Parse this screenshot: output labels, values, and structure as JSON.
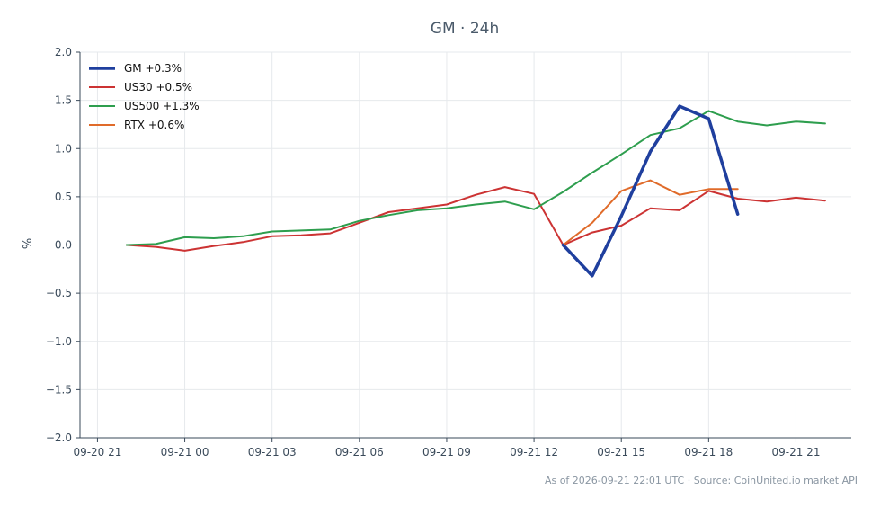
{
  "chart_data": {
    "type": "line",
    "title": "GM · 24h",
    "xlabel": "",
    "ylabel": "%",
    "ylim": [
      -2.0,
      2.0
    ],
    "xlim": [
      -0.6,
      25.9
    ],
    "x_ticks": [
      {
        "x": 0,
        "label": "09-20 21"
      },
      {
        "x": 3,
        "label": "09-21 00"
      },
      {
        "x": 6,
        "label": "09-21 03"
      },
      {
        "x": 9,
        "label": "09-21 06"
      },
      {
        "x": 12,
        "label": "09-21 09"
      },
      {
        "x": 15,
        "label": "09-21 12"
      },
      {
        "x": 18,
        "label": "09-21 15"
      },
      {
        "x": 21,
        "label": "09-21 18"
      },
      {
        "x": 24,
        "label": "09-21 21"
      }
    ],
    "y_ticks": [
      {
        "y": 2.0,
        "label": "2.0"
      },
      {
        "y": 1.5,
        "label": "1.5"
      },
      {
        "y": 1.0,
        "label": "1.0"
      },
      {
        "y": 0.5,
        "label": "0.5"
      },
      {
        "y": 0.0,
        "label": "0.0"
      },
      {
        "y": -0.5,
        "label": "−0.5"
      },
      {
        "y": -1.0,
        "label": "−1.0"
      },
      {
        "y": -1.5,
        "label": "−1.5"
      },
      {
        "y": -2.0,
        "label": "−2.0"
      }
    ],
    "grid": true,
    "zero_line": true,
    "legend_position": "top-left",
    "series": [
      {
        "name": "GM +0.3%",
        "color": "#1f3f9e",
        "width": 3.5,
        "x": [
          16,
          17,
          18,
          19,
          20,
          21,
          22
        ],
        "y": [
          0.0,
          -0.32,
          0.3,
          0.97,
          1.44,
          1.31,
          0.32
        ]
      },
      {
        "name": "US30 +0.5%",
        "color": "#cc3333",
        "width": 2,
        "x": [
          1,
          2,
          3,
          4,
          5,
          6,
          7,
          8,
          9,
          10,
          11,
          12,
          13,
          14,
          15,
          16,
          17,
          18,
          19,
          20,
          21,
          22,
          23,
          24,
          25
        ],
        "y": [
          0.0,
          -0.02,
          -0.06,
          -0.01,
          0.03,
          0.09,
          0.1,
          0.12,
          0.23,
          0.34,
          0.38,
          0.42,
          0.52,
          0.6,
          0.53,
          0.0,
          0.13,
          0.2,
          0.38,
          0.36,
          0.56,
          0.48,
          0.45,
          0.49,
          0.46
        ]
      },
      {
        "name": "US500 +1.3%",
        "color": "#2e9e4e",
        "width": 2,
        "x": [
          1,
          2,
          3,
          4,
          5,
          6,
          7,
          8,
          9,
          10,
          11,
          12,
          13,
          14,
          15,
          16,
          17,
          18,
          19,
          20,
          21,
          22,
          23,
          24,
          25
        ],
        "y": [
          0.0,
          0.01,
          0.08,
          0.07,
          0.09,
          0.14,
          0.15,
          0.16,
          0.25,
          0.31,
          0.36,
          0.38,
          0.42,
          0.45,
          0.37,
          0.55,
          0.75,
          0.94,
          1.14,
          1.21,
          1.39,
          1.28,
          1.24,
          1.28,
          1.26
        ]
      },
      {
        "name": "RTX +0.6%",
        "color": "#e06b2a",
        "width": 2,
        "x": [
          16,
          17,
          18,
          19,
          20,
          21,
          22
        ],
        "y": [
          0.0,
          0.23,
          0.56,
          0.67,
          0.52,
          0.58,
          0.58
        ]
      }
    ]
  },
  "footer": "As of 2026-09-21 22:01 UTC · Source: CoinUnited.io market API"
}
